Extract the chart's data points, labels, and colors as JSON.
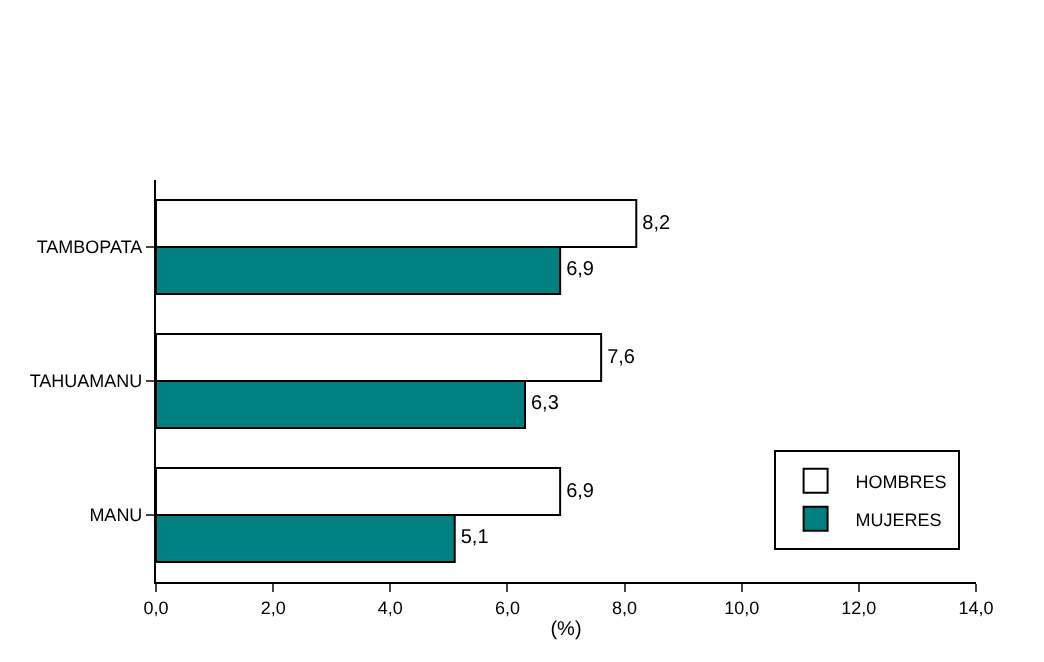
{
  "chart_data": {
    "type": "bar",
    "orientation": "horizontal",
    "categories": [
      "TAMBOPATA",
      "TAHUAMANU",
      "MANU"
    ],
    "series": [
      {
        "name": "HOMBRES",
        "color": "#ffffff",
        "values": [
          8.2,
          7.6,
          6.9
        ],
        "value_labels": [
          "8,2",
          "7,6",
          "6,9"
        ]
      },
      {
        "name": "MUJERES",
        "color": "#008080",
        "values": [
          6.9,
          6.3,
          5.1
        ],
        "value_labels": [
          "6,9",
          "6,3",
          "5,1"
        ]
      }
    ],
    "xlabel": "(%)",
    "xlim": [
      0,
      14
    ],
    "xticks": [
      {
        "value": 0,
        "label": "0,0"
      },
      {
        "value": 2,
        "label": "2,0"
      },
      {
        "value": 4,
        "label": "4,0"
      },
      {
        "value": 6,
        "label": "6,0"
      },
      {
        "value": 8,
        "label": "8,0"
      },
      {
        "value": 10,
        "label": "10,0"
      },
      {
        "value": 12,
        "label": "12,0"
      },
      {
        "value": 14,
        "label": "14,0"
      }
    ],
    "legend": "bottom right"
  }
}
